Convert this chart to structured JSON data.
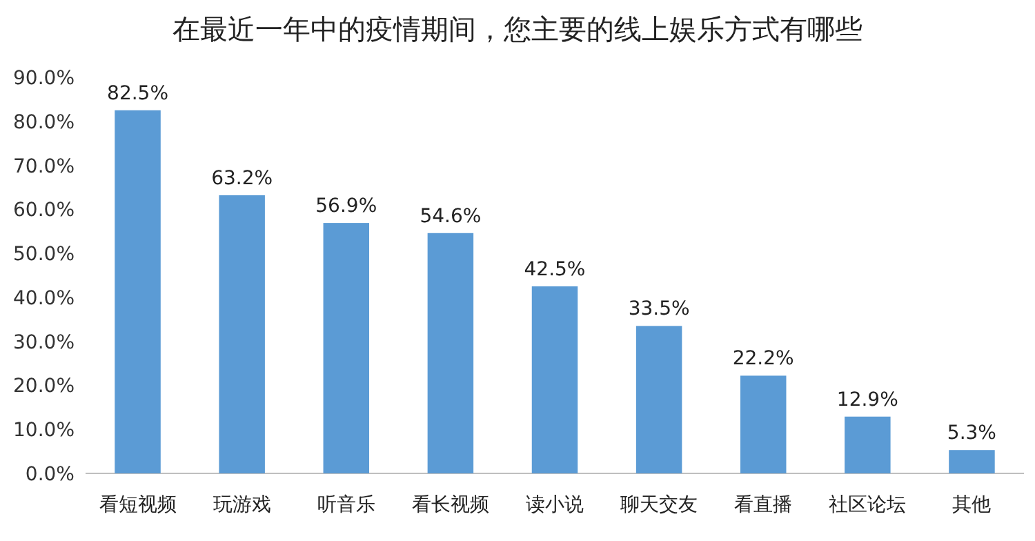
{
  "chart_data": {
    "type": "bar",
    "title": "在最近一年中的疫情期间，您主要的线上娱乐方式有哪些",
    "categories": [
      "看短视频",
      "玩游戏",
      "听音乐",
      "看长视频",
      "读小说",
      "聊天交友",
      "看直播",
      "社区论坛",
      "其他"
    ],
    "values": [
      82.5,
      63.2,
      56.9,
      54.6,
      42.5,
      33.5,
      22.2,
      12.9,
      5.3
    ],
    "value_labels": [
      "82.5%",
      "63.2%",
      "56.9%",
      "54.6%",
      "42.5%",
      "33.5%",
      "22.2%",
      "12.9%",
      "5.3%"
    ],
    "color": "#5b9bd5",
    "ylim": [
      0,
      90
    ],
    "yticks": [
      {
        "value": 0,
        "label": "0.0%"
      },
      {
        "value": 10,
        "label": "10.0%"
      },
      {
        "value": 20,
        "label": "20.0%"
      },
      {
        "value": 30,
        "label": "30.0%"
      },
      {
        "value": 40,
        "label": "40.0%"
      },
      {
        "value": 50,
        "label": "50.0%"
      },
      {
        "value": 60,
        "label": "60.0%"
      },
      {
        "value": 70,
        "label": "70.0%"
      },
      {
        "value": 80,
        "label": "80.0%"
      },
      {
        "value": 90,
        "label": "90.0%"
      }
    ],
    "grid": false
  }
}
